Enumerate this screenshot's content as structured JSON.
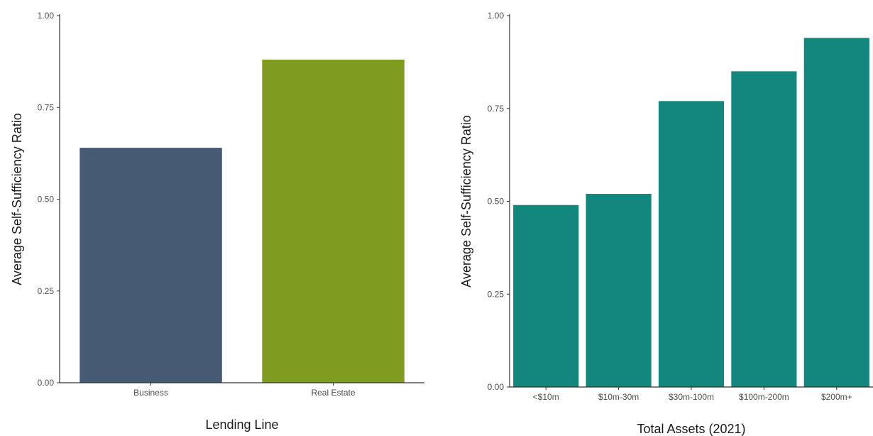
{
  "chart_data": [
    {
      "type": "bar",
      "categories": [
        "Business",
        "Real Estate"
      ],
      "values": [
        0.64,
        0.88
      ],
      "colors": [
        "#475a73",
        "#7f9b20"
      ],
      "xlabel": "Lending Line",
      "ylabel": "Average Self-Sufficiency Ratio",
      "ylim": [
        0,
        1
      ],
      "yticks": [
        "0.00",
        "0.25",
        "0.50",
        "0.75",
        "1.00"
      ],
      "grid": false
    },
    {
      "type": "bar",
      "categories": [
        "<$10m",
        "$10m-30m",
        "$30m-100m",
        "$100m-200m",
        "$200m+"
      ],
      "values": [
        0.49,
        0.52,
        0.77,
        0.85,
        0.94
      ],
      "colors": [
        "#13877e",
        "#13877e",
        "#13877e",
        "#13877e",
        "#13877e"
      ],
      "xlabel": "Total Assets (2021)",
      "ylabel": "Average Self-Sufficiency Ratio",
      "ylim": [
        0,
        1
      ],
      "yticks": [
        "0.00",
        "0.25",
        "0.50",
        "0.75",
        "1.00"
      ],
      "grid": false
    }
  ]
}
